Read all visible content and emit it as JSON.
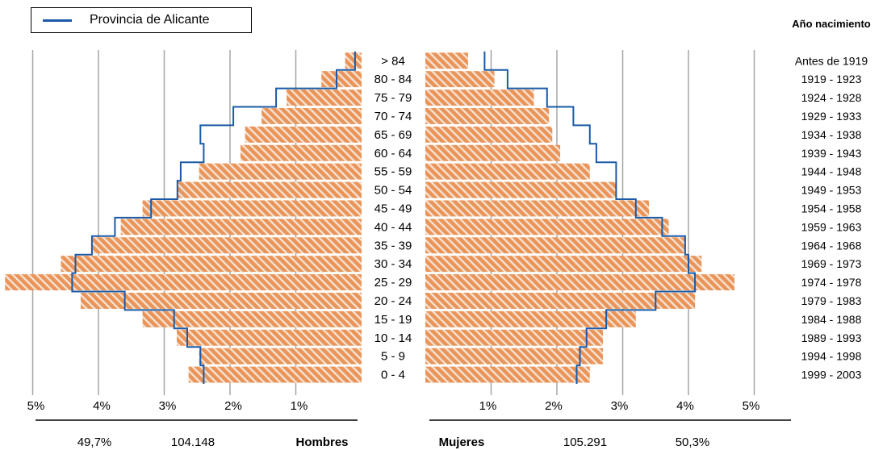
{
  "legend": {
    "label": "Provincia de Alicante"
  },
  "year_header": "Año nacimiento",
  "colors": {
    "bar": "#e9955a",
    "bar_stripe": "#f7e2d2",
    "outline": "#1a5aa6",
    "grid": "#a6a6a6",
    "axis": "#000000"
  },
  "chart_data": {
    "type": "bar",
    "orientation": "horizontal-pyramid",
    "categories": [
      "0 - 4",
      "5 - 9",
      "10 - 14",
      "15 - 19",
      "20 - 24",
      "25 - 29",
      "30 - 34",
      "35 - 39",
      "40 - 44",
      "45 - 49",
      "50 - 54",
      "55 - 59",
      "60 - 64",
      "65 - 69",
      "70 - 74",
      "75 - 79",
      "80 - 84",
      "> 84"
    ],
    "birth_years": [
      "1999 - 2003",
      "1994 - 1998",
      "1989 - 1993",
      "1984 - 1988",
      "1979 - 1983",
      "1974 - 1978",
      "1969 - 1973",
      "1964 - 1968",
      "1959 - 1963",
      "1954 - 1958",
      "1949 - 1953",
      "1944 - 1948",
      "1939 - 1943",
      "1934 - 1938",
      "1929 - 1933",
      "1924 - 1928",
      "1919 - 1923",
      "Antes de 1919"
    ],
    "series": [
      {
        "name": "Hombres",
        "values": [
          2.63,
          2.47,
          2.81,
          3.33,
          4.27,
          5.42,
          4.57,
          4.09,
          3.66,
          3.33,
          2.81,
          2.47,
          1.84,
          1.77,
          1.52,
          1.14,
          0.61,
          0.25
        ]
      },
      {
        "name": "Mujeres",
        "values": [
          2.5,
          2.7,
          2.7,
          3.2,
          4.1,
          4.7,
          4.2,
          3.95,
          3.7,
          3.4,
          2.9,
          2.5,
          2.05,
          1.93,
          1.88,
          1.65,
          1.05,
          0.65
        ]
      },
      {
        "name": "Provincia de Alicante - Hombres",
        "values": [
          2.4,
          2.45,
          2.65,
          2.85,
          3.6,
          4.4,
          4.35,
          4.1,
          3.75,
          3.2,
          2.8,
          2.75,
          2.4,
          2.45,
          1.95,
          1.3,
          0.38,
          0.1
        ]
      },
      {
        "name": "Provincia de Alicante - Mujeres",
        "values": [
          2.3,
          2.35,
          2.45,
          2.75,
          3.5,
          4.1,
          4.0,
          3.95,
          3.6,
          3.2,
          2.9,
          2.9,
          2.6,
          2.5,
          2.25,
          1.85,
          1.25,
          0.9
        ]
      }
    ],
    "xticks": [
      1,
      2,
      3,
      4,
      5
    ],
    "xtick_labels": [
      "1%",
      "2%",
      "3%",
      "4%",
      "5%"
    ],
    "xlim": [
      0,
      5.5
    ],
    "grid": true,
    "legend_position": "top-left"
  },
  "totals": {
    "hombres": {
      "label": "Hombres",
      "count": "104.148",
      "percent": "49,7%"
    },
    "mujeres": {
      "label": "Mujeres",
      "count": "105.291",
      "percent": "50,3%"
    }
  }
}
